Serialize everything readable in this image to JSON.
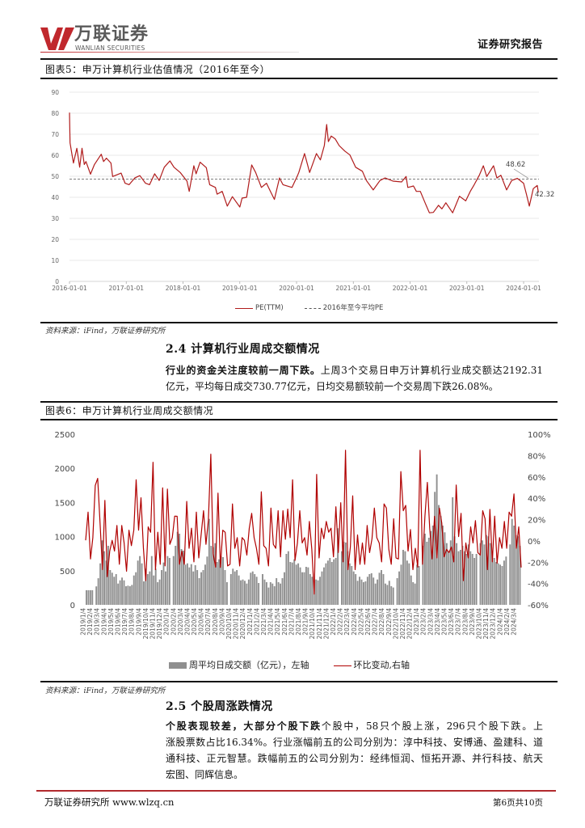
{
  "header": {
    "logo_cn": "万联证券",
    "logo_en": "WANLIAN SECURITIES",
    "report_type": "证券研究报告",
    "brand_color": "#c0282d"
  },
  "figure5": {
    "title": "图表5：申万计算机行业估值情况（2016年至今）",
    "source": "资料来源：iFind，万联证券研究所"
  },
  "section_2_4": {
    "heading": "2.4 计算机行业周成交额情况",
    "lead": "行业的资金关注度较前一周下跌。",
    "line1_rest": "上周3个交易日申万计算机行业成交额达2192.31",
    "line2": "亿元，平均每日成交730.77亿元，日均交易额较前一个交易周下跌26.08%。"
  },
  "figure6": {
    "title": "图表6：申万计算机行业周成交额情况",
    "source": "资料来源：iFind，万联证券研究所"
  },
  "section_2_5": {
    "heading": "2.5 个股周涨跌情况",
    "lead": "个股表现较差，大部分个股下跌",
    "line1_rest": "个股中，58只个股上涨，296只个股下跌。上",
    "line2": "涨股票数占比16.34%。行业涨幅前五的公司分别为：淳中科技、安博通、盈建科、道",
    "line3": "通科技、正元智慧。跌幅前五的公司分别为：经纬恒润、恒拓开源、并行科技、航天",
    "line4": "宏图、同辉信息。"
  },
  "footer": {
    "left": "万联证券研究所 www.wlzq.cn",
    "right": "第6页共10页"
  },
  "chart_data": [
    {
      "type": "line",
      "title": "申万计算机行业估值情况（2016年至今）",
      "xlabel": "",
      "ylabel": "",
      "ylim": [
        0,
        90
      ],
      "yticks": [
        0,
        10,
        20,
        30,
        40,
        50,
        60,
        70,
        80,
        90
      ],
      "xlim": [
        2016,
        2024.27
      ],
      "xticks": [
        {
          "x": 2016,
          "label": "2016-01-01"
        },
        {
          "x": 2017,
          "label": "2017-01-01"
        },
        {
          "x": 2018,
          "label": "2018-01-01"
        },
        {
          "x": 2019,
          "label": "2019-01-01"
        },
        {
          "x": 2020,
          "label": "2020-01-01"
        },
        {
          "x": 2021,
          "label": "2021-01-01"
        },
        {
          "x": 2022,
          "label": "2022-01-01"
        },
        {
          "x": 2023,
          "label": "2023-01-01"
        },
        {
          "x": 2024,
          "label": "2024-01-01"
        }
      ],
      "grid": true,
      "legend_position": "bottom",
      "series": [
        {
          "name": "PE(TTM)",
          "color": "#b01c1c",
          "points": [
            [
              2016.0,
              80.3
            ],
            [
              2016.01,
              65.9
            ],
            [
              2016.04,
              61.0
            ],
            [
              2016.07,
              56.3
            ],
            [
              2016.13,
              63.3
            ],
            [
              2016.18,
              54.3
            ],
            [
              2016.22,
              63.3
            ],
            [
              2016.26,
              55.6
            ],
            [
              2016.29,
              57.0
            ],
            [
              2016.37,
              51.0
            ],
            [
              2016.44,
              55.6
            ],
            [
              2016.56,
              60.5
            ],
            [
              2016.6,
              57.0
            ],
            [
              2016.65,
              58.6
            ],
            [
              2016.73,
              56.3
            ],
            [
              2016.76,
              49.9
            ],
            [
              2016.91,
              51.5
            ],
            [
              2016.98,
              46.7
            ],
            [
              2017.05,
              46.0
            ],
            [
              2017.15,
              49.2
            ],
            [
              2017.24,
              50.3
            ],
            [
              2017.34,
              46.7
            ],
            [
              2017.41,
              46.0
            ],
            [
              2017.5,
              51.2
            ],
            [
              2017.58,
              48.0
            ],
            [
              2017.67,
              54.3
            ],
            [
              2017.77,
              57.3
            ],
            [
              2017.84,
              54.3
            ],
            [
              2017.95,
              51.8
            ],
            [
              2018.07,
              47.7
            ],
            [
              2018.11,
              42.8
            ],
            [
              2018.19,
              55.0
            ],
            [
              2018.23,
              51.2
            ],
            [
              2018.3,
              56.7
            ],
            [
              2018.41,
              54.1
            ],
            [
              2018.47,
              46.0
            ],
            [
              2018.57,
              44.7
            ],
            [
              2018.6,
              41.5
            ],
            [
              2018.69,
              42.8
            ],
            [
              2018.78,
              35.8
            ],
            [
              2018.87,
              40.3
            ],
            [
              2019.0,
              35.4
            ],
            [
              2019.04,
              39.6
            ],
            [
              2019.12,
              40.0
            ],
            [
              2019.21,
              55.4
            ],
            [
              2019.28,
              51.8
            ],
            [
              2019.38,
              44.7
            ],
            [
              2019.47,
              46.7
            ],
            [
              2019.54,
              42.8
            ],
            [
              2019.61,
              39.0
            ],
            [
              2019.7,
              49.2
            ],
            [
              2019.76,
              46.0
            ],
            [
              2019.92,
              44.7
            ],
            [
              2020.02,
              50.5
            ],
            [
              2020.04,
              51.8
            ],
            [
              2020.14,
              60.8
            ],
            [
              2020.23,
              51.8
            ],
            [
              2020.35,
              60.8
            ],
            [
              2020.42,
              57.8
            ],
            [
              2020.49,
              64.6
            ],
            [
              2020.53,
              74.6
            ],
            [
              2020.56,
              66.5
            ],
            [
              2020.61,
              69.1
            ],
            [
              2020.68,
              67.8
            ],
            [
              2020.75,
              64.6
            ],
            [
              2020.85,
              62.0
            ],
            [
              2020.94,
              60.1
            ],
            [
              2021.04,
              54.3
            ],
            [
              2021.16,
              52.4
            ],
            [
              2021.23,
              48.0
            ],
            [
              2021.35,
              43.5
            ],
            [
              2021.47,
              48.0
            ],
            [
              2021.56,
              49.2
            ],
            [
              2021.7,
              47.7
            ],
            [
              2021.85,
              47.3
            ],
            [
              2021.93,
              49.9
            ],
            [
              2021.96,
              44.7
            ],
            [
              2022.06,
              45.4
            ],
            [
              2022.11,
              42.8
            ],
            [
              2022.18,
              42.8
            ],
            [
              2022.27,
              37.0
            ],
            [
              2022.34,
              32.6
            ],
            [
              2022.41,
              32.8
            ],
            [
              2022.5,
              36.2
            ],
            [
              2022.56,
              34.5
            ],
            [
              2022.63,
              37.4
            ],
            [
              2022.75,
              32.6
            ],
            [
              2022.87,
              40.5
            ],
            [
              2022.98,
              38.3
            ],
            [
              2023.06,
              42.8
            ],
            [
              2023.13,
              46.0
            ],
            [
              2023.22,
              50.5
            ],
            [
              2023.29,
              55.0
            ],
            [
              2023.35,
              49.9
            ],
            [
              2023.47,
              55.0
            ],
            [
              2023.53,
              49.2
            ],
            [
              2023.6,
              50.5
            ],
            [
              2023.7,
              43.5
            ],
            [
              2023.79,
              48.0
            ],
            [
              2023.89,
              49.0
            ],
            [
              2024.0,
              46.7
            ],
            [
              2024.05,
              41.5
            ],
            [
              2024.1,
              35.8
            ],
            [
              2024.17,
              44.1
            ],
            [
              2024.24,
              45.6
            ],
            [
              2024.26,
              42.32
            ]
          ]
        },
        {
          "name": "2016年至今平均PE",
          "color": "#555555",
          "style": "dashed",
          "value": 48.62
        }
      ],
      "annotations": [
        {
          "text": "48.62",
          "target": "2016年至今平均PE"
        },
        {
          "text": "42.32",
          "target": "PE(TTM) latest"
        }
      ]
    },
    {
      "type": "bar",
      "title": "申万计算机行业周成交额情况",
      "xlabel": "",
      "ylabel_left": "周平均日成交额（亿元）",
      "ylabel_right": "环比变动",
      "ylim_left": [
        0,
        2500
      ],
      "yticks_left": [
        "0",
        "500",
        "1000",
        "1500",
        "2000",
        "2500"
      ],
      "ylim_right": [
        -60,
        100
      ],
      "yticks_right": [
        "-60%",
        "-40%",
        "-20%",
        "0%",
        "20%",
        "40%",
        "60%",
        "80%",
        "100%"
      ],
      "grid": false,
      "legend_position": "bottom",
      "categories": [
        "2019/1/4",
        "2019/2/4",
        "2019/3/4",
        "2019/4/4",
        "2019/5/4",
        "2019/6/4",
        "2019/7/4",
        "2019/8/4",
        "2019/9/4",
        "2019/10/4",
        "2019/11/4",
        "2019/12/4",
        "2020/1/4",
        "2020/2/4",
        "2020/3/4",
        "2020/4/4",
        "2020/5/4",
        "2020/6/4",
        "2020/7/4",
        "2020/8/4",
        "2020/9/4",
        "2020/10/4",
        "2020/11/4",
        "2020/12/4",
        "2021/1/4",
        "2021/2/4",
        "2021/3/4",
        "2021/4/4",
        "2021/5/4",
        "2021/6/4",
        "2021/7/4",
        "2021/8/4",
        "2021/9/4",
        "2021/10/4",
        "2021/11/4",
        "2021/12/4",
        "2022/1/4",
        "2022/2/4",
        "2022/3/4",
        "2022/4/4",
        "2022/5/4",
        "2022/6/4",
        "2022/7/4",
        "2022/8/4",
        "2022/9/4",
        "2022/10/4",
        "2022/11/4",
        "2022/12/4",
        "2023/1/4",
        "2023/2/4",
        "2023/3/4",
        "2023/4/4",
        "2023/5/4",
        "2023/6/4",
        "2023/7/4",
        "2023/8/4",
        "2023/9/4",
        "2023/10/4",
        "2023/11/4",
        "2023/12/4",
        "2024/1/4",
        "2024/2/4",
        "2024/3/4"
      ],
      "series": [
        {
          "name": "周平均日成交额（亿元），左轴",
          "type": "bar",
          "axis": "left",
          "color": "#8f8f8f",
          "values": [
            215,
            215,
            215,
            215,
            null,
            270,
            390,
            608,
            944,
            786,
            648,
            865,
            509,
            470,
            411,
            450,
            312,
            359,
            399,
            359,
            272,
            281,
            272,
            292,
            430,
            478,
            648,
            714,
            608,
            344,
            530,
            450,
            489,
            714,
            430,
            530,
            332,
            371,
            509,
            620,
            489,
            714,
            687,
            null,
            714,
            865,
            1070,
            1043,
            817,
            794,
            589,
            608,
            549,
            596,
            489,
            580,
            509,
            391,
            478,
            509,
            589,
            707,
            1259,
            865,
            845,
            904,
            628,
            667,
            707,
            699,
            509,
            332,
            null,
            450,
            530,
            489,
            509,
            430,
            359,
            371,
            352,
            312,
            371,
            470,
            489,
            450,
            411,
            320,
            null,
            450,
            371,
            332,
            253,
            332,
            312,
            272,
            391,
            332,
            312,
            391,
            478,
            746,
            786,
            628,
            620,
            667,
            589,
            608,
            549,
            478,
            478,
            557,
            549,
            450,
            411,
            352,
            371,
            359,
            411,
            489,
            549,
            608,
            648,
            687,
            628,
            667,
            687,
            1122,
            null,
            786,
            924,
            914,
            786,
            608,
            569,
            489,
            450,
            352,
            411,
            371,
            332,
            344,
            411,
            450,
            463,
            399,
            312,
            371,
            470,
            509,
            450,
            312,
            292,
            352,
            272,
            253,
            null,
            391,
            489,
            589,
            806,
            786,
            648,
            608,
            430,
            332,
            312,
            589,
            569,
            null,
            865,
            1043,
            924,
            983,
            1082,
            1161,
            1655,
            1911,
            1462,
            1304,
            1161,
            1063,
            904,
            786,
            944,
            1576,
            1003,
            904,
            786,
            806,
            865,
            786,
            746,
            885,
            786,
            746,
            687,
            746,
            null,
            904,
            944,
            885,
            1023,
            1003,
            904,
            786,
            687,
            628,
            608,
            589,
            569,
            648,
            707,
            null,
            885,
            1259,
            1161,
            1023,
            1003,
            865
          ]
        },
        {
          "name": "环比变动,右轴",
          "type": "line",
          "axis": "right",
          "unit": "%",
          "color": "#b00000",
          "values": [
            0.5,
            27,
            -17,
            3,
            52,
            58.6,
            15.7,
            -27,
            38,
            -33.6,
            -9.6,
            0.5,
            -9.6,
            14.4,
            -22,
            14.4,
            -2,
            -28.5,
            10,
            -4.5,
            10,
            57.3,
            10,
            40.4,
            -7,
            -37.3,
            13.1,
            8.1,
            73.7,
            -27,
            8.1,
            -22,
            49.7,
            -23.5,
            48.5,
            -3.3,
            3,
            23.2,
            23,
            -22,
            -9.6,
            -22,
            37,
            -7,
            11.9,
            -19.7,
            27,
            -16,
            5.5,
            28.3,
            -3.3,
            19.5,
            81.3,
            -12,
            -24.7,
            44.7,
            -25,
            10,
            8,
            -23.5,
            -22,
            34.6,
            -7,
            3,
            -23.5,
            3,
            0.5,
            -13.4,
            11.9,
            25.8,
            3,
            -7,
            -22,
            46,
            -4.5,
            -7,
            -23.5,
            30.8,
            -3.3,
            -7,
            28.3,
            -15,
            28.3,
            1.5,
            29.8,
            3,
            57.3,
            -18.4,
            -2,
            28.3,
            -2,
            3,
            -13.4,
            18.2,
            -8,
            -50,
            62.3,
            -16,
            11.9,
            2,
            18.2,
            8.1,
            11.9,
            -15,
            32,
            -11,
            35.8,
            -19.7,
            85,
            -27,
            -5.8,
            42.2,
            -27,
            5.5,
            -22,
            -2,
            -22,
            14.4,
            -11,
            2,
            30.8,
            3,
            -2,
            -19.7,
            34.6,
            30.8,
            -8,
            -22,
            20.7,
            -16,
            -17,
            65,
            28.3,
            33.3,
            -9.6,
            10.6,
            -27,
            -7,
            -24.7,
            85,
            -22,
            23.2,
            54.8,
            11.9,
            -17,
            23,
            -16,
            30.8,
            16.9,
            -15,
            -8,
            -11,
            -5.8,
            -19.7,
            52.3,
            4,
            25.8,
            -37.3,
            -2,
            -16,
            13.1,
            -2,
            19,
            -11,
            -13.4,
            28.3,
            20.7,
            -27,
            29.5,
            -19.7,
            23.2,
            -21,
            3,
            -7,
            18.2,
            -7,
            27,
            23,
            44,
            -7,
            13.1,
            -25
          ]
        }
      ]
    }
  ]
}
